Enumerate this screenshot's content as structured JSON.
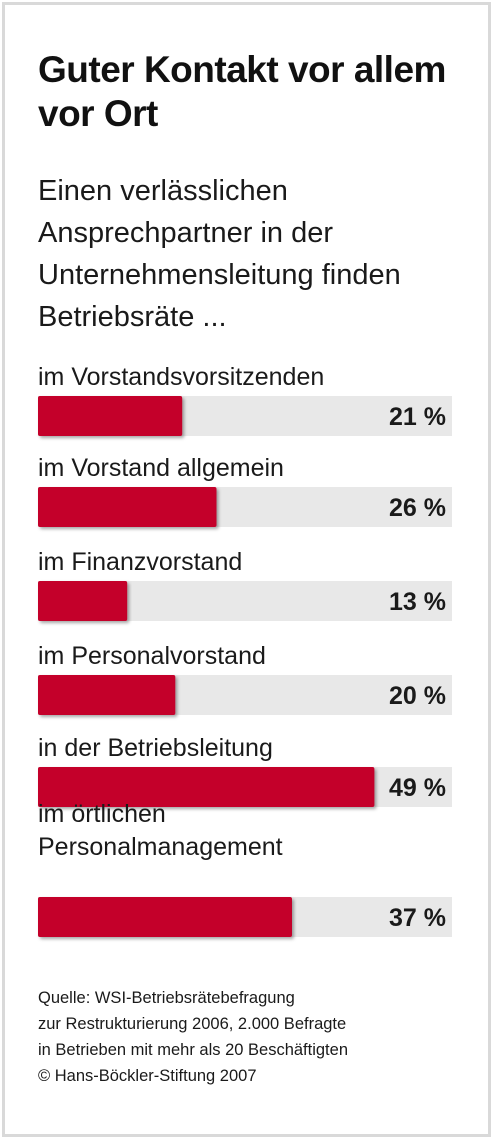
{
  "chart_data": {
    "type": "bar",
    "orientation": "horizontal",
    "title": "Guter Kontakt vor allem vor Ort",
    "subtitle": "Einen verlässlichen Ansprechpartner in der Unternehmensleitung finden Betriebsräte ...",
    "categories": [
      [
        "im Vorstandsvorsitzenden"
      ],
      [
        "im Vorstand allgemein"
      ],
      [
        "im Finanzvorstand"
      ],
      [
        "im Personalvorstand"
      ],
      [
        "in der Betriebsleitung"
      ],
      [
        "im örtlichen",
        "Personalmanagement"
      ]
    ],
    "values": [
      21,
      26,
      13,
      20,
      49,
      37
    ],
    "value_labels": [
      "21 %",
      "26 %",
      "13 %",
      "20 %",
      "49 %",
      "37 %"
    ],
    "unit": "%",
    "xlim": [
      0,
      59
    ],
    "source": [
      "Quelle: WSI-Betriebsrätebefragung",
      "zur Restrukturierung 2006, 2.000 Befragte",
      "in Betrieben mit mehr als 20 Beschäftigten",
      "© Hans-Böckler-Stiftung 2007"
    ]
  },
  "colors": {
    "bar": "#c4012c",
    "track": "#e8e8e8",
    "frame": "#d9d9d9",
    "text": "#1a1a1a"
  }
}
